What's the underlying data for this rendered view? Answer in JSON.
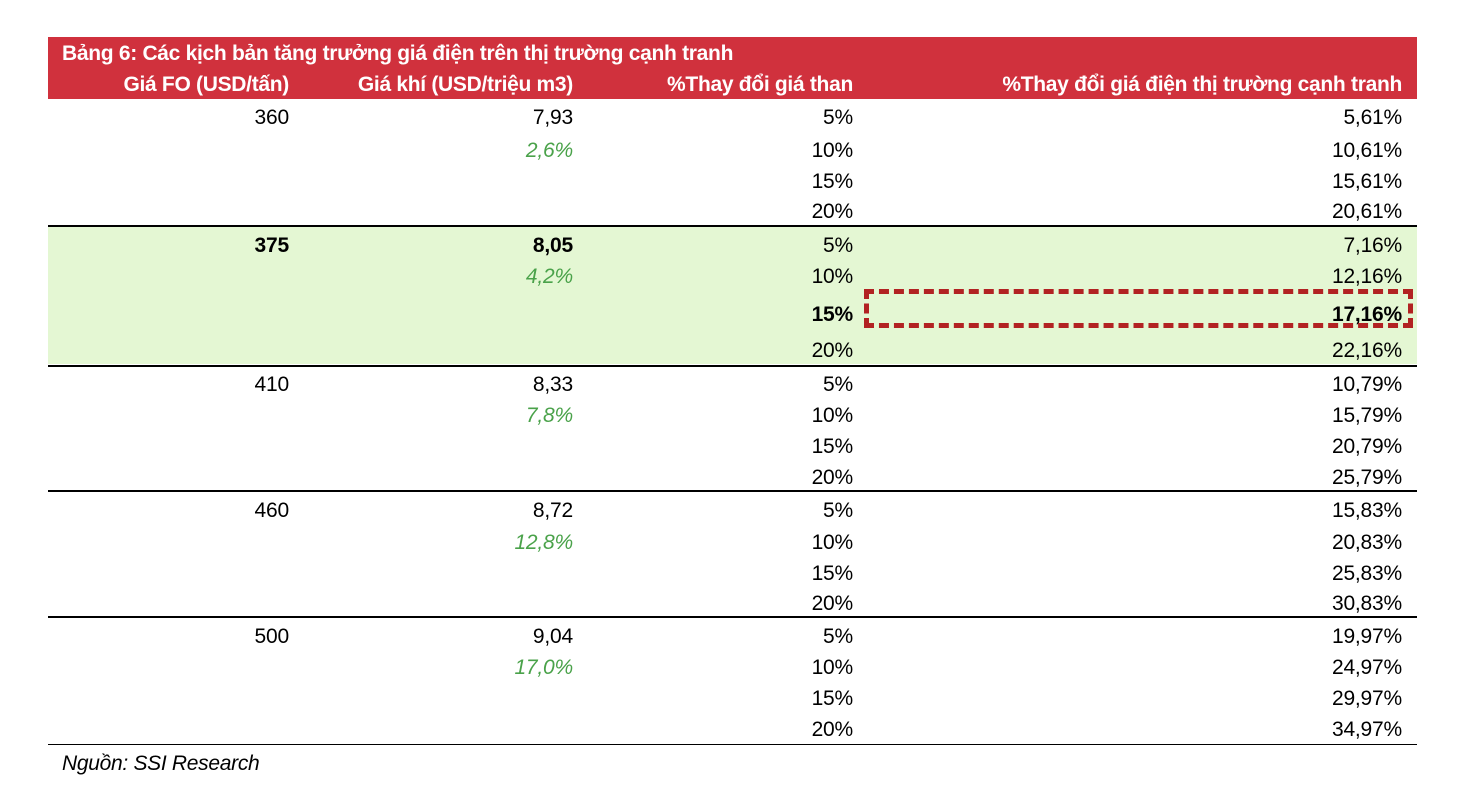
{
  "colors": {
    "header_background": "#d0313d",
    "highlight_background": "#e4f7d3",
    "percent_text": "#4aa24a",
    "dashed_border": "#b22222"
  },
  "table": {
    "title": "Bảng 6: Các kịch bản tăng trưởng giá điện trên thị trường cạnh tranh",
    "headers": {
      "fo_price": "Giá FO (USD/tấn)",
      "gas_price": "Giá khí (USD/triệu m3)",
      "coal_change": "%Thay đổi giá than",
      "electricity_change": "%Thay đổi giá điện thị trường cạnh tranh"
    },
    "groups": [
      {
        "fo": "360",
        "gas": "7,93",
        "gas_change": "2,6%",
        "rows": [
          {
            "coal": "5%",
            "elec": "5,61%"
          },
          {
            "coal": "10%",
            "elec": "10,61%"
          },
          {
            "coal": "15%",
            "elec": "15,61%"
          },
          {
            "coal": "20%",
            "elec": "20,61%"
          }
        ]
      },
      {
        "fo": "375",
        "gas": "8,05",
        "gas_change": "4,2%",
        "rows": [
          {
            "coal": "5%",
            "elec": "7,16%"
          },
          {
            "coal": "10%",
            "elec": "12,16%"
          },
          {
            "coal": "15%",
            "elec": "17,16%"
          },
          {
            "coal": "20%",
            "elec": "22,16%"
          }
        ]
      },
      {
        "fo": "410",
        "gas": "8,33",
        "gas_change": "7,8%",
        "rows": [
          {
            "coal": "5%",
            "elec": "10,79%"
          },
          {
            "coal": "10%",
            "elec": "15,79%"
          },
          {
            "coal": "15%",
            "elec": "20,79%"
          },
          {
            "coal": "20%",
            "elec": "25,79%"
          }
        ]
      },
      {
        "fo": "460",
        "gas": "8,72",
        "gas_change": "12,8%",
        "rows": [
          {
            "coal": "5%",
            "elec": "15,83%"
          },
          {
            "coal": "10%",
            "elec": "20,83%"
          },
          {
            "coal": "15%",
            "elec": "25,83%"
          },
          {
            "coal": "20%",
            "elec": "30,83%"
          }
        ]
      },
      {
        "fo": "500",
        "gas": "9,04",
        "gas_change": "17,0%",
        "rows": [
          {
            "coal": "5%",
            "elec": "19,97%"
          },
          {
            "coal": "10%",
            "elec": "24,97%"
          },
          {
            "coal": "15%",
            "elec": "29,97%"
          },
          {
            "coal": "20%",
            "elec": "34,97%"
          }
        ]
      }
    ],
    "source": "Nguồn: SSI Research"
  }
}
